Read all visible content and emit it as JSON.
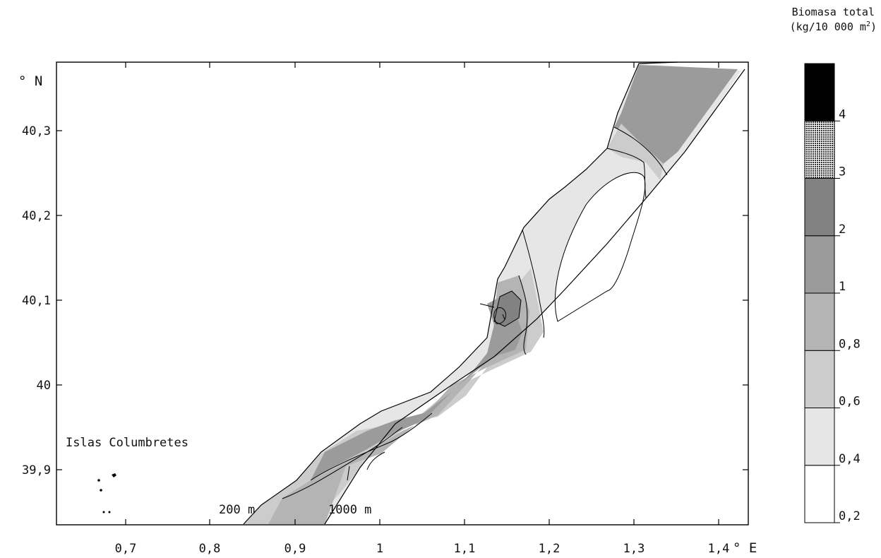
{
  "legend": {
    "title_line1": "Biomasa total",
    "unit_prefix": "(kg/10 000 m",
    "unit_sup": "2",
    "unit_suffix": ")",
    "classes": [
      {
        "label": "0,2",
        "color": "#ffffff"
      },
      {
        "label": "0,4",
        "color": "#e6e6e6"
      },
      {
        "label": "0,6",
        "color": "#cccccc"
      },
      {
        "label": "0,8",
        "color": "#b4b4b4"
      },
      {
        "label": "1",
        "color": "#9b9b9b"
      },
      {
        "label": "2",
        "color": "#828282"
      },
      {
        "label": "3",
        "color": "#8a8a8a",
        "pattern": "dots"
      },
      {
        "label": "4",
        "color": "#000000"
      }
    ]
  },
  "axes": {
    "x_ticks": [
      "0,7",
      "0,8",
      "0,9",
      "1",
      "1,1",
      "1,2",
      "1,3",
      "1,4"
    ],
    "x_unit": "° E",
    "y_ticks": [
      "39,9",
      "40",
      "40,1",
      "40,2",
      "40,3"
    ],
    "y_unit": "° N"
  },
  "annotations": {
    "islands": "Islas Columbretes",
    "isobath_200": "200 m",
    "isobath_1000": "1000 m"
  }
}
